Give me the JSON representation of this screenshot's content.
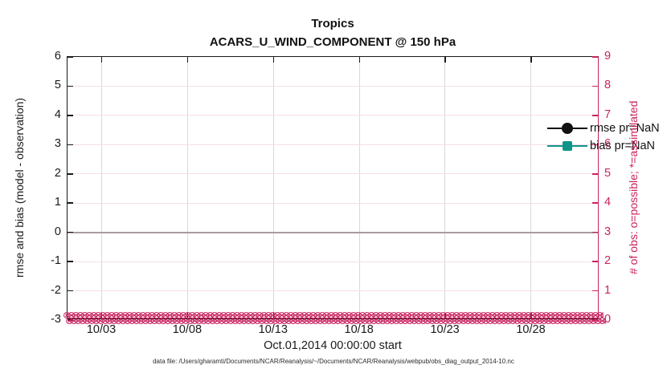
{
  "title": {
    "region": "Tropics",
    "subtitle": "ACARS_U_WIND_COMPONENT @ 150 hPa"
  },
  "legend": {
    "items": [
      {
        "label": "rmse pr=NaN",
        "marker": "circle",
        "color": "#111111"
      },
      {
        "label": "bias pr=NaN",
        "marker": "square",
        "color": "#0f9489"
      }
    ]
  },
  "axes": {
    "left": {
      "label": "rmse and bias (model - observation)",
      "ticks": [
        "6",
        "5",
        "4",
        "3",
        "2",
        "1",
        "0",
        "-1",
        "-2",
        "-3"
      ],
      "color": "#1a1a1a"
    },
    "right": {
      "label": "# of obs: o=possible; *=assimilated",
      "ticks": [
        "9",
        "8",
        "7",
        "6",
        "5",
        "4",
        "3",
        "2",
        "1",
        "0"
      ],
      "color": "#c9235f"
    },
    "x": {
      "label": "Oct.01,2014 00:00:00 start",
      "ticks": [
        "10/03",
        "10/08",
        "10/13",
        "10/18",
        "10/23",
        "10/28"
      ]
    }
  },
  "footer": "data file: /Users/gharamti/Documents/NCAR/Reanalysis/~/Documents/NCAR/Reanalysis/webpub/obs_diag_output_2014-10.nc",
  "chart_data": {
    "type": "line",
    "title": "Tropics",
    "subtitle": "ACARS_U_WIND_COMPONENT @ 150 hPa",
    "xlabel": "Oct.01,2014 00:00:00 start",
    "ylabel_left": "rmse and bias (model - observation)",
    "ylabel_right": "# of obs: o=possible; *=assimilated",
    "x_tick_labels": [
      "10/03",
      "10/08",
      "10/13",
      "10/18",
      "10/23",
      "10/28"
    ],
    "x_range": [
      "2014-10-01 00:00:00",
      "2014-10-31 18:00:00"
    ],
    "left_ylim": [
      -3,
      6
    ],
    "right_ylim": [
      0,
      9
    ],
    "grid": true,
    "legend_position": "top-right-inside",
    "zero_reference_line": 0,
    "series": [
      {
        "name": "rmse pr=NaN",
        "axis": "left",
        "marker": "circle",
        "color": "#111111",
        "values": "all NaN (nothing plotted)"
      },
      {
        "name": "bias pr=NaN",
        "axis": "left",
        "marker": "square",
        "color": "#0f9489",
        "values": "all NaN (nothing plotted)"
      },
      {
        "name": "# of obs possible (o)",
        "axis": "right",
        "marker": "o",
        "color": "#c9235f",
        "value_at_all_times": 0
      },
      {
        "name": "# of obs assimilated (*)",
        "axis": "right",
        "marker": "*",
        "color": "#c9235f",
        "value_at_all_times": 0
      }
    ],
    "n_time_bins": 124,
    "marker_glyph": "⊗"
  }
}
